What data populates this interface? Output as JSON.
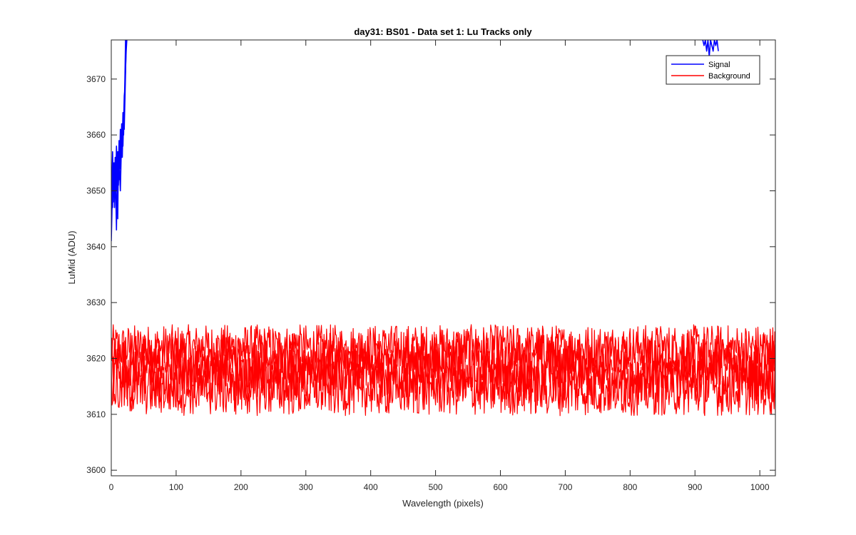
{
  "chart_data": {
    "type": "line",
    "title": "day31: BS01 - Data set 1: Lu Tracks only",
    "xlabel": "Wavelength (pixels)",
    "ylabel": "LuMid (ADU)",
    "xlim": [
      0,
      1024
    ],
    "ylim": [
      3599,
      3677
    ],
    "xticks": [
      0,
      100,
      200,
      300,
      400,
      500,
      600,
      700,
      800,
      900,
      1000
    ],
    "yticks": [
      3600,
      3610,
      3620,
      3630,
      3640,
      3650,
      3660,
      3670
    ],
    "grid": false,
    "legend_position": "top-right",
    "legend": [
      "Signal",
      "Background"
    ],
    "series": [
      {
        "name": "Signal",
        "color": "#0000ff",
        "traces": [
          {
            "x": [
              0,
              1,
              2,
              3,
              4,
              5,
              6,
              7,
              8,
              9,
              10,
              11,
              12,
              13,
              14,
              15,
              16,
              17,
              18,
              19,
              20,
              21,
              22,
              23,
              24
            ],
            "y": [
              3641,
              3646,
              3652,
              3648,
              3655,
              3650,
              3656,
              3652,
              3658,
              3654,
              3657,
              3653,
              3659,
              3655,
              3661,
              3657,
              3662,
              3659,
              3664,
              3662,
              3667,
              3668,
              3672,
              3675,
              3677
            ]
          },
          {
            "x": [
              0,
              1,
              2,
              3,
              4,
              5,
              6,
              7,
              8,
              9,
              10,
              11,
              12,
              13,
              14,
              15,
              16,
              17,
              18,
              19,
              20,
              21,
              22,
              23
            ],
            "y": [
              3645,
              3650,
              3647,
              3653,
              3649,
              3655,
              3651,
              3656,
              3650,
              3656,
              3645,
              3657,
              3652,
              3658,
              3654,
              3660,
              3656,
              3662,
              3658,
              3663,
              3661,
              3666,
              3671,
              3677
            ]
          },
          {
            "x": [
              0,
              1,
              2,
              3,
              4,
              5,
              6,
              7,
              8,
              9,
              10,
              11,
              12,
              13,
              14,
              15,
              16,
              17,
              18,
              19,
              20,
              21,
              22
            ],
            "y": [
              3643,
              3652,
              3657,
              3650,
              3655,
              3647,
              3653,
              3649,
              3643,
              3652,
              3656,
              3651,
              3657,
              3653,
              3650,
              3655,
              3660,
              3656,
              3662,
              3660,
              3665,
              3670,
              3677
            ]
          },
          {
            "x": [
              912,
              914,
              916,
              918,
              920,
              922,
              924,
              926,
              928,
              930,
              932,
              934,
              936
            ],
            "y": [
              3677,
              3676,
              3677,
              3675,
              3677,
              3674,
              3677,
              3676,
              3675,
              3677,
              3676,
              3677,
              3675
            ]
          }
        ]
      },
      {
        "name": "Background",
        "color": "#ff0000",
        "traces": [
          {
            "x_start": 0,
            "x_end": 1024,
            "mean": 3621.8,
            "range": [
              3617.5,
              3626.5
            ]
          },
          {
            "x_start": 0,
            "x_end": 1024,
            "mean": 3619.5,
            "range": [
              3614.0,
              3624.5
            ]
          },
          {
            "x_start": 0,
            "x_end": 1024,
            "mean": 3617.0,
            "range": [
              3612.0,
              3622.0
            ]
          },
          {
            "x_start": 0,
            "x_end": 1024,
            "mean": 3614.5,
            "range": [
              3609.5,
              3619.5
            ]
          }
        ]
      }
    ]
  }
}
